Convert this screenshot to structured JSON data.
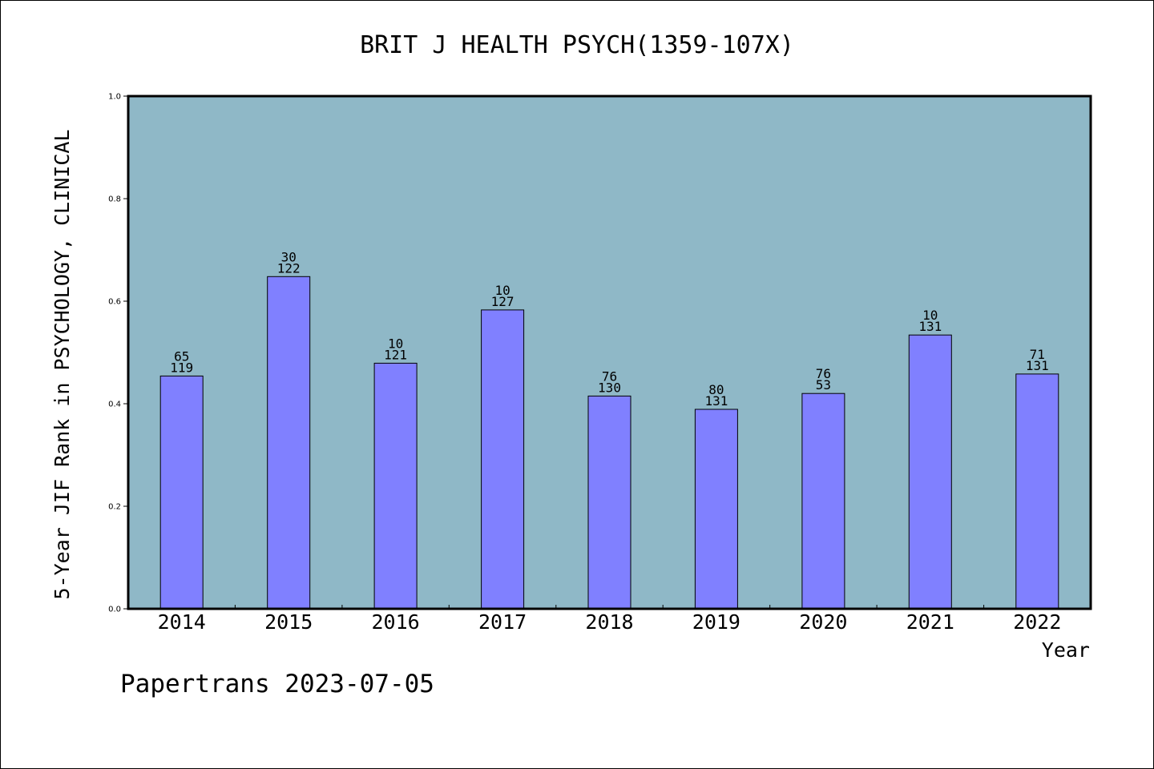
{
  "chart_data": {
    "type": "bar",
    "title": "BRIT J HEALTH PSYCH(1359-107X)",
    "xlabel": "Year",
    "ylabel": "5-Year JIF Rank in PSYCHOLOGY, CLINICAL",
    "ylim": [
      0,
      1.0
    ],
    "yticks": [
      "0.0",
      "0.2",
      "0.4",
      "0.6",
      "0.8",
      "1.0"
    ],
    "categories": [
      "2014",
      "2015",
      "2016",
      "2017",
      "2018",
      "2019",
      "2020",
      "2021",
      "2022"
    ],
    "values": [
      0.454,
      0.648,
      0.479,
      0.583,
      0.415,
      0.389,
      0.42,
      0.534,
      0.458
    ],
    "rank": [
      "65",
      "30",
      "10",
      "10",
      "76",
      "80",
      "76",
      "10",
      "71"
    ],
    "total": [
      "119",
      "122",
      "121",
      "127",
      "130",
      "131",
      "53",
      "131",
      "131"
    ],
    "grid": false,
    "legend": "none"
  },
  "colors": {
    "plot_background": "#8fb8c7",
    "bar_fill": "#8080ff",
    "bar_stroke": "#000000"
  },
  "footer": "Papertrans 2023-07-05"
}
